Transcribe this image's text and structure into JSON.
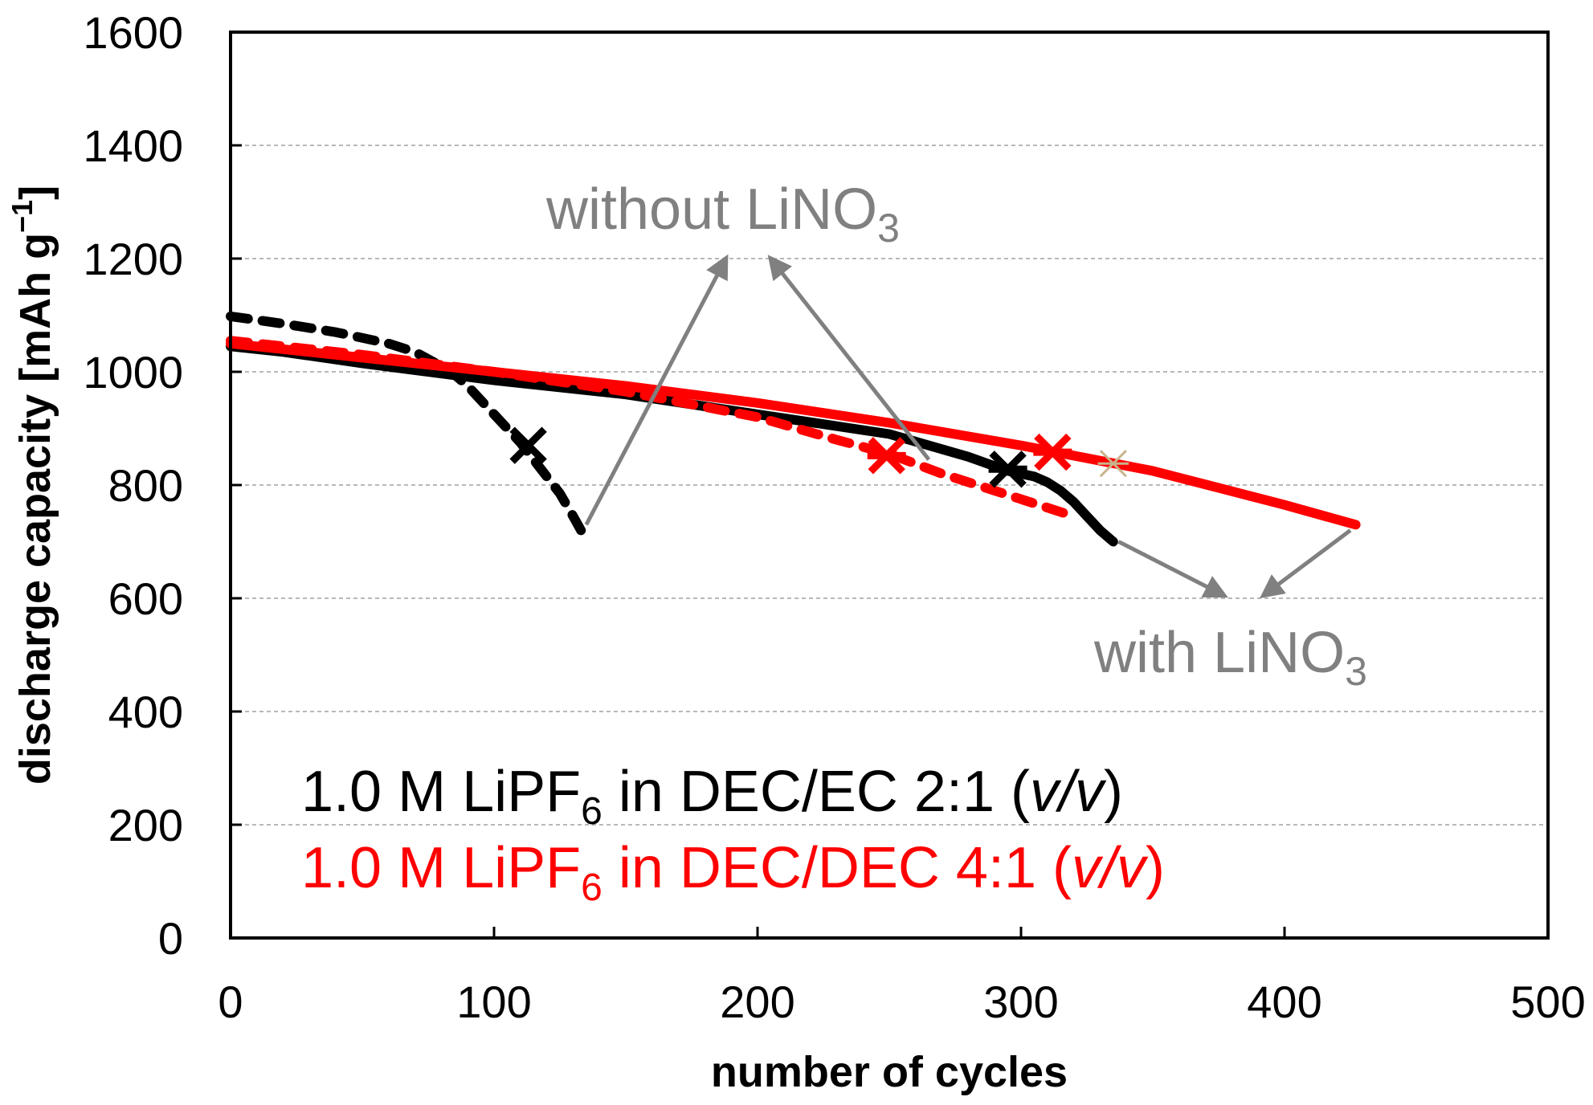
{
  "chart_data": {
    "type": "line",
    "title": "",
    "xlabel": "number of cycles",
    "ylabel_main": "discharge capacity  [mAh g",
    "ylabel_sup": "−1",
    "ylabel_close": "]",
    "xlim": [
      0,
      500
    ],
    "ylim": [
      0,
      1600
    ],
    "x_ticks": [
      0,
      100,
      200,
      300,
      400,
      500
    ],
    "y_ticks": [
      0,
      200,
      400,
      600,
      800,
      1000,
      1200,
      1400,
      1600
    ],
    "grid": "horizontal-dashed",
    "series": [
      {
        "name": "1.0 M LiPF6 in DEC/EC 2:1 (v/v), without LiNO3",
        "color": "#000000",
        "style": "dashed",
        "x": [
          0,
          20,
          40,
          60,
          70,
          80,
          85,
          90,
          95,
          100,
          105,
          110,
          115,
          120,
          125,
          130,
          133
        ],
        "y": [
          1098,
          1085,
          1070,
          1050,
          1035,
          1010,
          995,
          975,
          950,
          925,
          900,
          875,
          845,
          815,
          785,
          745,
          720
        ]
      },
      {
        "name": "1.0 M LiPF6 in DEC/EC 2:1 (v/v), with LiNO3",
        "color": "#000000",
        "style": "solid",
        "x": [
          0,
          20,
          50,
          100,
          150,
          200,
          250,
          280,
          295,
          305,
          310,
          315,
          320,
          325,
          330,
          335
        ],
        "y": [
          1045,
          1035,
          1015,
          985,
          960,
          925,
          890,
          850,
          825,
          815,
          805,
          790,
          770,
          745,
          720,
          700
        ]
      },
      {
        "name": "1.0 M LiPF6 in DEC/DEC 4:1 (v/v), without LiNO3",
        "color": "#ff0000",
        "style": "dashed",
        "x": [
          0,
          50,
          100,
          150,
          200,
          230,
          250,
          270,
          290,
          300,
          310,
          320
        ],
        "y": [
          1055,
          1030,
          1000,
          965,
          920,
          880,
          855,
          820,
          790,
          775,
          760,
          745
        ]
      },
      {
        "name": "1.0 M LiPF6 in DEC/DEC 4:1 (v/v), with LiNO3",
        "color": "#ff0000",
        "style": "solid",
        "x": [
          0,
          50,
          100,
          150,
          200,
          250,
          300,
          350,
          400,
          427
        ],
        "y": [
          1050,
          1025,
          1000,
          975,
          945,
          910,
          870,
          825,
          765,
          730
        ]
      }
    ],
    "markers": [
      {
        "series": "DEC/EC dashed",
        "x": 113,
        "y": 870,
        "color": "#000000",
        "symbol": "cross"
      },
      {
        "series": "DEC/EC solid",
        "x": 295,
        "y": 828,
        "color": "#000000",
        "symbol": "asterisk"
      },
      {
        "series": "DEC/DEC dashed",
        "x": 249,
        "y": 852,
        "color": "#ff0000",
        "symbol": "asterisk"
      },
      {
        "series": "DEC/DEC solid",
        "x": 312,
        "y": 858,
        "color": "#ff0000",
        "symbol": "asterisk"
      },
      {
        "series": "DEC/DEC solid",
        "x": 335,
        "y": 838,
        "color": "#c8b48c",
        "symbol": "asterisk"
      }
    ],
    "annotations": [
      {
        "text": "without LiNO",
        "sub": "3",
        "color": "#808080"
      },
      {
        "text": "with LiNO",
        "sub": "3",
        "color": "#808080"
      }
    ],
    "arrows": [
      {
        "from": [
          135,
          730
        ],
        "to": [
          188,
          1200
        ]
      },
      {
        "from": [
          265,
          845
        ],
        "to": [
          205,
          1200
        ]
      },
      {
        "from": [
          337,
          700
        ],
        "to": [
          377,
          605
        ]
      },
      {
        "from": [
          425,
          720
        ],
        "to": [
          392,
          605
        ]
      }
    ],
    "legend": [
      {
        "pre": "1.0 M LiPF",
        "sub": "6",
        "mid": " in DEC/EC 2:1 (",
        "italic": "v/v",
        "post": ")",
        "color": "#000000"
      },
      {
        "pre": "1.0 M LiPF",
        "sub": "6",
        "mid": " in DEC/DEC 4:1 (",
        "italic": "v/v",
        "post": ")",
        "color": "#ff0000"
      }
    ]
  }
}
